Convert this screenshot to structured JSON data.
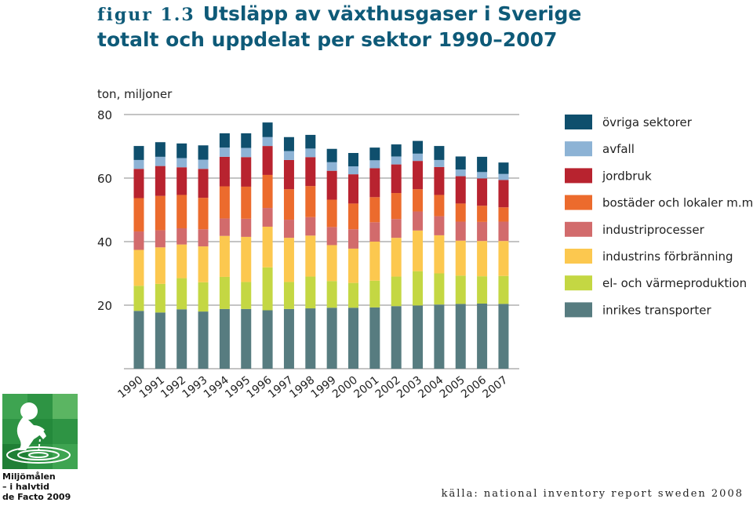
{
  "figure": {
    "label": "figur 1.3",
    "title_line1": "Utsläpp av växthusgaser i Sverige",
    "title_line2": "totalt och uppdelat per sektor 1990–2007"
  },
  "logo": {
    "line1": "Miljömålen",
    "line2": "– i halvtid",
    "line3": "de Facto 2009",
    "colors": {
      "dark_green": "#1f8a3c",
      "mid_green": "#3da24e",
      "light_green": "#7fc07e"
    }
  },
  "source": "källa: national inventory report sweden 2008",
  "chart_data": {
    "type": "bar",
    "stacked": true,
    "ylabel": "ton, miljoner",
    "ylim": [
      0,
      80
    ],
    "yticks": [
      20,
      40,
      60,
      80
    ],
    "grid": true,
    "legend_position": "right",
    "categories": [
      "1990",
      "1991",
      "1992",
      "1993",
      "1994",
      "1995",
      "1996",
      "1997",
      "1998",
      "1999",
      "2000",
      "2001",
      "2002",
      "2003",
      "2004",
      "2005",
      "2006",
      "2007"
    ],
    "series": [
      {
        "name": "inrikes transporter",
        "color": "#577c80",
        "values": [
          18.2,
          17.7,
          18.7,
          18.0,
          18.8,
          18.8,
          18.4,
          18.8,
          19.0,
          19.2,
          19.2,
          19.3,
          19.7,
          19.9,
          20.2,
          20.4,
          20.5,
          20.4
        ]
      },
      {
        "name": "el- och värmeproduktion",
        "color": "#c4d743",
        "values": [
          7.9,
          9.0,
          9.8,
          9.2,
          10.1,
          8.5,
          13.5,
          8.5,
          10.0,
          8.4,
          7.8,
          8.4,
          9.3,
          10.8,
          9.8,
          8.9,
          8.6,
          8.8
        ]
      },
      {
        "name": "industrins förbränning",
        "color": "#fcc84f",
        "values": [
          11.3,
          11.5,
          10.6,
          11.3,
          12.9,
          14.2,
          12.8,
          13.9,
          12.9,
          11.3,
          10.8,
          12.3,
          12.2,
          12.8,
          12.0,
          11.0,
          11.1,
          11.0
        ]
      },
      {
        "name": "industriprocesser",
        "color": "#d26b6c",
        "values": [
          5.8,
          5.4,
          5.1,
          5.4,
          5.5,
          5.7,
          5.9,
          5.7,
          5.8,
          5.7,
          6.1,
          6.1,
          5.9,
          6.0,
          6.0,
          6.0,
          6.0,
          6.1
        ]
      },
      {
        "name": "bostäder och lokaler m.m.",
        "color": "#ec6b2d",
        "values": [
          10.5,
          10.8,
          10.5,
          9.9,
          10.1,
          10.1,
          10.4,
          9.6,
          9.8,
          8.6,
          8.1,
          7.9,
          8.2,
          7.0,
          6.7,
          5.7,
          5.1,
          4.5
        ]
      },
      {
        "name": "jordbruk",
        "color": "#b8232f",
        "values": [
          9.2,
          9.4,
          8.7,
          9.1,
          9.3,
          9.3,
          9.1,
          9.2,
          9.1,
          9.1,
          9.2,
          9.1,
          9.0,
          8.9,
          8.8,
          8.6,
          8.6,
          8.6
        ]
      },
      {
        "name": "avfall",
        "color": "#8db3d5",
        "values": [
          2.8,
          2.9,
          2.9,
          2.9,
          2.9,
          2.9,
          2.8,
          2.8,
          2.7,
          2.7,
          2.5,
          2.5,
          2.5,
          2.3,
          2.2,
          2.1,
          2.0,
          1.9
        ]
      },
      {
        "name": "övriga sektorer",
        "color": "#0f4f6d",
        "values": [
          4.4,
          4.6,
          4.6,
          4.5,
          4.5,
          4.6,
          4.6,
          4.4,
          4.3,
          4.2,
          4.2,
          4.0,
          3.8,
          4.0,
          4.4,
          4.1,
          4.8,
          3.6
        ]
      }
    ]
  }
}
